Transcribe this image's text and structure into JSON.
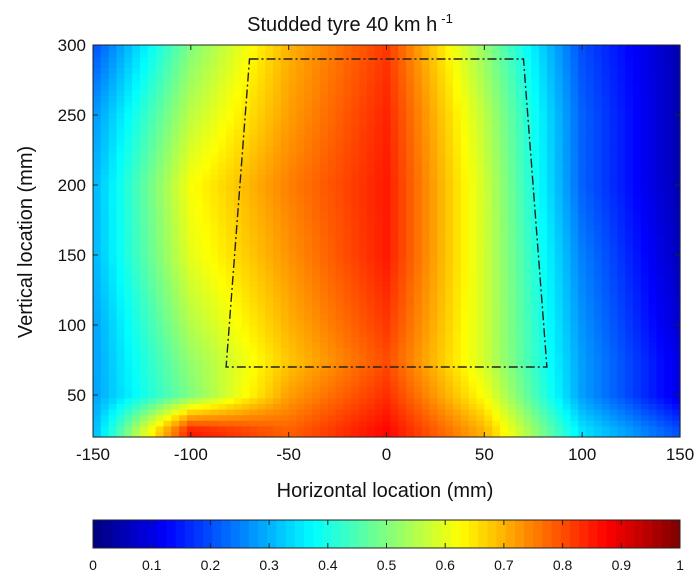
{
  "chart_data": {
    "type": "heatmap",
    "title": "Studded tyre 40 km h",
    "title_superscript": "-1",
    "xlabel": "Horizontal location (mm)",
    "ylabel": "Vertical location (mm)",
    "xlim": [
      -150,
      150
    ],
    "ylim": [
      20,
      300
    ],
    "x_ticks": [
      -150,
      -100,
      -50,
      0,
      50,
      100,
      150
    ],
    "y_ticks": [
      50,
      100,
      150,
      200,
      250,
      300
    ],
    "colormap": "jet",
    "colorbar": {
      "position": "bottom",
      "range": [
        0,
        1
      ],
      "ticks": [
        "0",
        "0.1",
        "0.2",
        "0.3",
        "0.4",
        "0.5",
        "0.6",
        "0.7",
        "0.8",
        "0.9",
        "1"
      ]
    },
    "grid": false,
    "field": {
      "x": [
        -150,
        -100,
        -50,
        0,
        50,
        100,
        150
      ],
      "y": [
        25,
        50,
        75,
        100,
        150,
        200,
        250,
        300
      ],
      "z": [
        [
          0.3,
          0.85,
          0.78,
          0.87,
          0.7,
          0.35,
          0.2
        ],
        [
          0.28,
          0.5,
          0.72,
          0.83,
          0.62,
          0.28,
          0.1
        ],
        [
          0.28,
          0.52,
          0.68,
          0.8,
          0.58,
          0.28,
          0.1
        ],
        [
          0.28,
          0.55,
          0.7,
          0.82,
          0.58,
          0.27,
          0.08
        ],
        [
          0.3,
          0.6,
          0.73,
          0.85,
          0.58,
          0.25,
          0.06
        ],
        [
          0.3,
          0.62,
          0.75,
          0.85,
          0.58,
          0.22,
          0.05
        ],
        [
          0.27,
          0.56,
          0.72,
          0.84,
          0.56,
          0.22,
          0.05
        ],
        [
          0.2,
          0.5,
          0.7,
          0.82,
          0.52,
          0.2,
          0.05
        ]
      ]
    },
    "overlay_polygon": {
      "style": "dash-dot",
      "x": [
        -70,
        70,
        82,
        -82
      ],
      "y": [
        290,
        290,
        70,
        70
      ]
    }
  }
}
